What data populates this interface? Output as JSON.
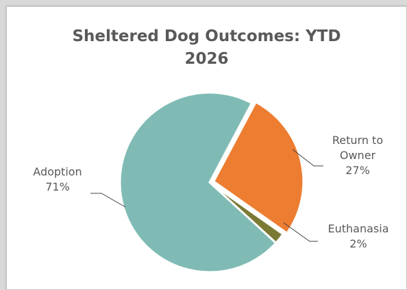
{
  "colors": {
    "adoption": "#7fbbb4",
    "return_to_owner": "#ed7d31",
    "euthanasia": "#7b7a34",
    "text": "#595959",
    "leader": "#404040"
  },
  "chart_data": {
    "type": "pie",
    "title_lines": [
      "Sheltered Dog Outcomes: YTD",
      "2026"
    ],
    "slices": [
      {
        "name": "Return to Owner",
        "label_lines": [
          "Return to",
          "Owner"
        ],
        "value": 27,
        "percent_label": "27%",
        "color": "#ed7d31",
        "exploded": true
      },
      {
        "name": "Euthanasia",
        "label_lines": [
          "Euthanasia"
        ],
        "value": 2,
        "percent_label": "2%",
        "color": "#7b7a34",
        "exploded": false
      },
      {
        "name": "Adoption",
        "label_lines": [
          "Adoption"
        ],
        "value": 71,
        "percent_label": "71%",
        "color": "#7fbbb4",
        "exploded": false
      }
    ],
    "legend": "none",
    "label_position": "outside-with-leader-lines"
  }
}
